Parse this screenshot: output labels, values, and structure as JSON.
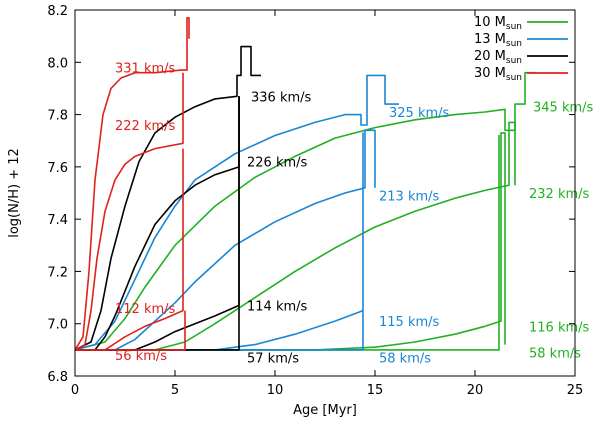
{
  "chart_data": {
    "type": "line",
    "title": "",
    "xlabel": "Age [Myr]",
    "ylabel": "log(N/H) + 12",
    "xlim": [
      0,
      25
    ],
    "ylim": [
      6.8,
      8.2
    ],
    "xticks": [
      0,
      5,
      10,
      15,
      20,
      25
    ],
    "yticks": [
      6.8,
      7.0,
      7.2,
      7.4,
      7.6,
      7.8,
      8.0,
      8.2
    ],
    "legend_position": "top-right",
    "legend": [
      {
        "mass": "10",
        "unit": "sun",
        "color": "#22b022"
      },
      {
        "mass": "13",
        "unit": "sun",
        "color": "#1a86d6"
      },
      {
        "mass": "20",
        "unit": "sun",
        "color": "#000000"
      },
      {
        "mass": "30",
        "unit": "sun",
        "color": "#e0211c"
      }
    ],
    "series": [
      {
        "name": "10 Msun, 345 km/s",
        "color": "#22b022",
        "label": "345 km/s",
        "label_at": [
          22.9,
          7.83
        ],
        "x": [
          0,
          1.5,
          2.5,
          3.5,
          5,
          7,
          9,
          11,
          13,
          15,
          17,
          19,
          20.5,
          21.5,
          21.5,
          22.0,
          22.0,
          22.5,
          22.5,
          23.0
        ],
        "y": [
          6.9,
          6.93,
          7.02,
          7.14,
          7.3,
          7.45,
          7.56,
          7.64,
          7.71,
          7.75,
          7.78,
          7.8,
          7.81,
          7.82,
          7.74,
          7.74,
          7.84,
          7.84,
          7.96,
          7.96
        ]
      },
      {
        "name": "10 Msun, 232 km/s",
        "color": "#22b022",
        "label": "232 km/s",
        "label_at": [
          22.7,
          7.5
        ],
        "x": [
          0,
          4,
          5.5,
          7,
          9,
          11,
          13,
          15,
          17,
          19,
          20.5,
          21.7,
          21.7,
          22.0,
          22.0
        ],
        "y": [
          6.9,
          6.9,
          6.93,
          7.0,
          7.1,
          7.2,
          7.29,
          7.37,
          7.43,
          7.48,
          7.51,
          7.53,
          7.77,
          7.77,
          7.53
        ]
      },
      {
        "name": "10 Msun, 116 km/s",
        "color": "#22b022",
        "label": "116 km/s",
        "label_at": [
          22.7,
          6.99
        ],
        "x": [
          0,
          12,
          15,
          17,
          19,
          20.5,
          21.3,
          21.3,
          21.5,
          21.5
        ],
        "y": [
          6.9,
          6.9,
          6.91,
          6.93,
          6.96,
          6.99,
          7.01,
          7.73,
          7.73,
          6.92
        ]
      },
      {
        "name": "10 Msun, 58 km/s",
        "color": "#22b022",
        "label": "58 km/s",
        "label_at": [
          22.7,
          6.89
        ],
        "x": [
          0,
          21.2,
          21.2,
          21.2
        ],
        "y": [
          6.9,
          6.9,
          7.72,
          6.9
        ]
      },
      {
        "name": "13 Msun, 325 km/s",
        "color": "#1a86d6",
        "label": "325 km/s",
        "label_at": [
          15.7,
          7.81
        ],
        "x": [
          0,
          1,
          2,
          3,
          4,
          5,
          6,
          8,
          10,
          12,
          13.5,
          14.3,
          14.3,
          14.6,
          14.6,
          15.5,
          15.5,
          16.2
        ],
        "y": [
          6.9,
          6.92,
          7.01,
          7.17,
          7.33,
          7.45,
          7.55,
          7.65,
          7.72,
          7.77,
          7.8,
          7.8,
          7.76,
          7.76,
          7.95,
          7.95,
          7.84,
          7.84
        ]
      },
      {
        "name": "13 Msun, 213 km/s",
        "color": "#1a86d6",
        "label": "213 km/s",
        "label_at": [
          15.2,
          7.49
        ],
        "x": [
          0,
          2,
          3,
          4,
          5,
          6,
          7,
          8,
          10,
          12,
          13.5,
          14.5,
          14.5,
          15.0,
          15.0
        ],
        "y": [
          6.9,
          6.9,
          6.94,
          7.01,
          7.08,
          7.16,
          7.23,
          7.3,
          7.39,
          7.46,
          7.5,
          7.52,
          7.74,
          7.74,
          7.52
        ]
      },
      {
        "name": "13 Msun, 115 km/s",
        "color": "#1a86d6",
        "label": "115 km/s",
        "label_at": [
          15.2,
          7.01
        ],
        "x": [
          0,
          7,
          9,
          11,
          13,
          14.4,
          14.4,
          14.4
        ],
        "y": [
          6.9,
          6.9,
          6.92,
          6.96,
          7.01,
          7.05,
          7.73,
          6.9
        ]
      },
      {
        "name": "13 Msun, 58 km/s",
        "color": "#1a86d6",
        "label": "58 km/s",
        "label_at": [
          15.2,
          6.87
        ],
        "x": [
          0,
          14.4
        ],
        "y": [
          6.9,
          6.9
        ]
      },
      {
        "name": "20 Msun, 336 km/s",
        "color": "#000000",
        "label": "336 km/s",
        "label_at": [
          8.8,
          7.87
        ],
        "x": [
          0,
          0.8,
          1.3,
          1.8,
          2.5,
          3.2,
          4,
          5,
          6,
          7,
          8.1,
          8.1,
          8.3,
          8.3,
          8.8,
          8.8,
          9.3
        ],
        "y": [
          6.9,
          6.93,
          7.05,
          7.25,
          7.45,
          7.62,
          7.73,
          7.79,
          7.83,
          7.86,
          7.87,
          7.95,
          7.95,
          8.06,
          8.06,
          7.95,
          7.95
        ]
      },
      {
        "name": "20 Msun, 226 km/s",
        "color": "#000000",
        "label": "226 km/s",
        "label_at": [
          8.6,
          7.62
        ],
        "x": [
          0,
          1,
          1.5,
          2,
          3,
          4,
          5,
          6,
          7,
          8.2,
          8.2
        ],
        "y": [
          6.9,
          6.9,
          6.95,
          7.03,
          7.22,
          7.38,
          7.47,
          7.53,
          7.57,
          7.6,
          7.87
        ]
      },
      {
        "name": "20 Msun, 114 km/s",
        "color": "#000000",
        "label": "114 km/s",
        "label_at": [
          8.6,
          7.07
        ],
        "x": [
          0,
          3,
          4,
          5,
          6,
          7,
          8.2,
          8.2
        ],
        "y": [
          6.9,
          6.9,
          6.93,
          6.97,
          7.0,
          7.03,
          7.07,
          7.87
        ]
      },
      {
        "name": "20 Msun, 57 km/s",
        "color": "#000000",
        "label": "57 km/s",
        "label_at": [
          8.6,
          6.87
        ],
        "x": [
          0,
          8.2,
          8.2
        ],
        "y": [
          6.9,
          6.9,
          7.87
        ]
      },
      {
        "name": "30 Msun, 331 km/s",
        "color": "#e0211c",
        "label": "331 km/s",
        "label_at": [
          2.0,
          7.98
        ],
        "x": [
          0,
          0.4,
          0.7,
          1.0,
          1.4,
          1.8,
          2.3,
          3,
          4,
          5.3,
          5.3,
          5.6,
          5.6,
          5.7,
          5.7
        ],
        "y": [
          6.9,
          6.95,
          7.2,
          7.55,
          7.8,
          7.9,
          7.94,
          7.96,
          7.96,
          7.97,
          7.97,
          7.97,
          8.17,
          8.17,
          8.09
        ]
      },
      {
        "name": "30 Msun, 222 km/s",
        "color": "#e0211c",
        "label": "222 km/s",
        "label_at": [
          2.0,
          7.76
        ],
        "x": [
          0,
          0.5,
          0.8,
          1.1,
          1.5,
          2,
          2.5,
          3,
          4,
          5.4,
          5.4
        ],
        "y": [
          6.9,
          6.92,
          7.05,
          7.25,
          7.43,
          7.55,
          7.61,
          7.64,
          7.67,
          7.69,
          7.96
        ]
      },
      {
        "name": "30 Msun, 112 km/s",
        "color": "#e0211c",
        "label": "112 km/s",
        "label_at": [
          2.0,
          7.06
        ],
        "x": [
          0,
          1.5,
          2.5,
          3.5,
          4.5,
          5.4,
          5.4
        ],
        "y": [
          6.9,
          6.9,
          6.95,
          6.99,
          7.02,
          7.05,
          7.67
        ]
      },
      {
        "name": "30 Msun, 56 km/s",
        "color": "#e0211c",
        "label": "56 km/s",
        "label_at": [
          2.0,
          6.88
        ],
        "x": [
          0,
          5.5,
          5.5
        ],
        "y": [
          6.9,
          6.9,
          7.05
        ]
      }
    ]
  }
}
